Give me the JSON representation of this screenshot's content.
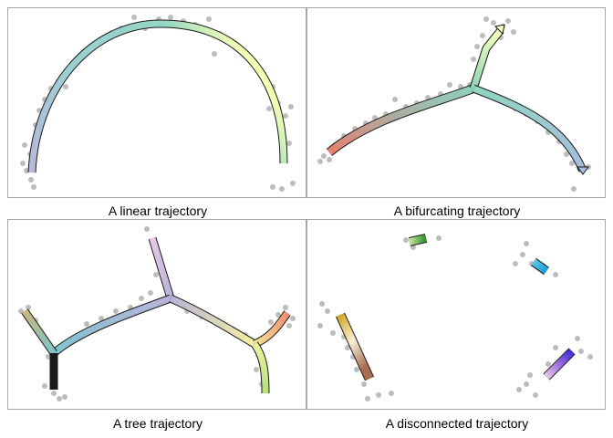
{
  "panels": [
    {
      "caption": "A linear trajectory"
    },
    {
      "caption": "A bifurcating trajectory"
    },
    {
      "caption": "A tree trajectory"
    },
    {
      "caption": "A disconnected trajectory"
    }
  ],
  "colors": {
    "border": "#a6a6a6",
    "cells": "#bdbdbd",
    "outline": "#1a1a1a"
  }
}
